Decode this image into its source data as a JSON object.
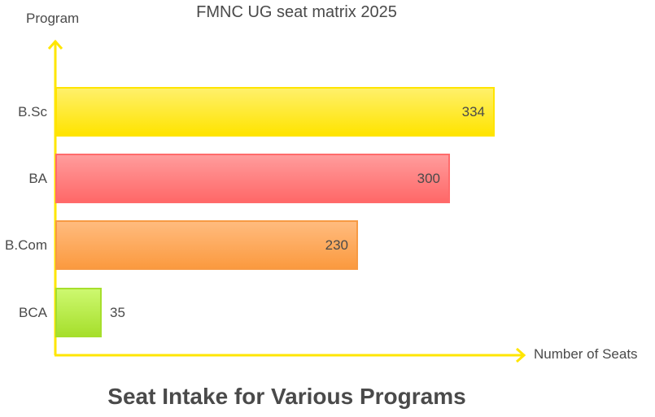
{
  "chart_data": {
    "type": "bar",
    "orientation": "horizontal",
    "title": "FMNC UG seat matrix 2025",
    "caption": "Seat Intake for Various Programs",
    "xlabel": "Number of Seats",
    "ylabel": "Program",
    "categories": [
      "B.Sc",
      "BA",
      "B.Com",
      "BCA"
    ],
    "values": [
      334,
      300,
      230,
      35
    ],
    "value_labels": [
      "334",
      "300",
      "230",
      "35"
    ],
    "grid": false,
    "legend": null,
    "xlim": [
      0,
      334
    ]
  },
  "colors": {
    "axis": "#ffe600",
    "text": "#4a4a4a",
    "bars": [
      {
        "top": "#fff06a",
        "bottom": "#ffe400",
        "border": "#ffe400"
      },
      {
        "top": "#ff9c9c",
        "bottom": "#ff6868",
        "border": "#ff6b6b"
      },
      {
        "top": "#ffbb7e",
        "bottom": "#fb9a3f",
        "border": "#f79a44"
      },
      {
        "top": "#cdf86f",
        "bottom": "#a6df2c",
        "border": "#a6df2c"
      }
    ]
  }
}
